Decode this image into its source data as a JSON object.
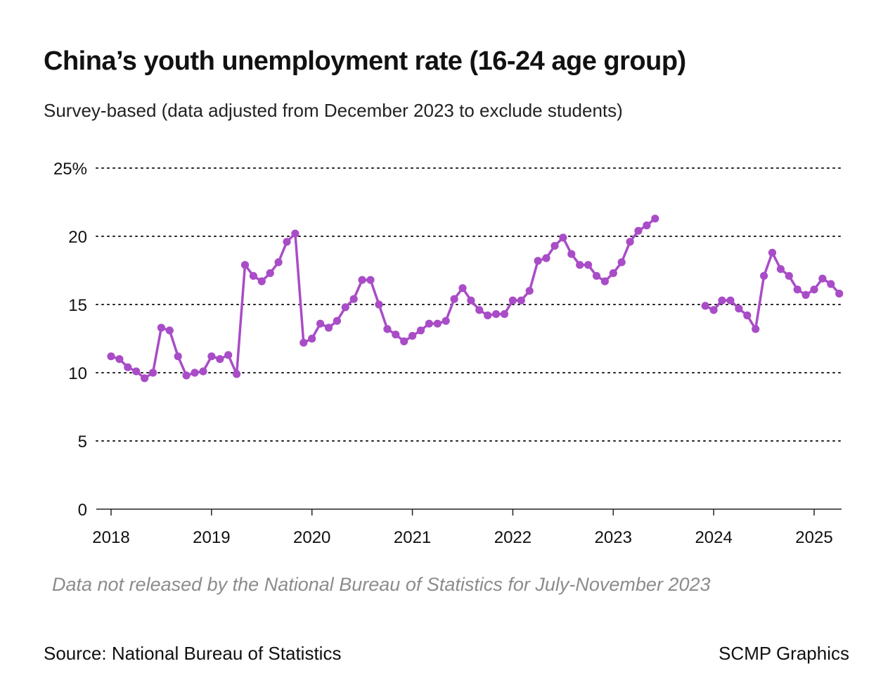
{
  "chart_data": {
    "type": "line",
    "title": "China’s youth unemployment rate (16-24 age group)",
    "subtitle": "Survey-based (data adjusted from December 2023 to exclude students)",
    "xlabel": "",
    "ylabel": "",
    "ylim": [
      0,
      25
    ],
    "y_ticks": [
      {
        "value": 25,
        "label": "25%"
      },
      {
        "value": 20,
        "label": "20"
      },
      {
        "value": 15,
        "label": "15"
      },
      {
        "value": 10,
        "label": "10"
      },
      {
        "value": 5,
        "label": "5"
      },
      {
        "value": 0,
        "label": "0"
      }
    ],
    "x_ticks": [
      {
        "value": 2018,
        "label": "2018"
      },
      {
        "value": 2019,
        "label": "2019"
      },
      {
        "value": 2020,
        "label": "2020"
      },
      {
        "value": 2021,
        "label": "2021"
      },
      {
        "value": 2022,
        "label": "2022"
      },
      {
        "value": 2023,
        "label": "2023"
      },
      {
        "value": 2024,
        "label": "2024"
      },
      {
        "value": 2025,
        "label": "2025"
      }
    ],
    "xlim": [
      2017.99,
      2025.4
    ],
    "grid": true,
    "series": [
      {
        "name": "Youth unemployment rate",
        "color": "#a94cc7",
        "segments": [
          {
            "start": "2018-01",
            "values": [
              11.2,
              11.0,
              10.4,
              10.1,
              9.6,
              10.0,
              13.3,
              13.1,
              11.2,
              9.8,
              10.0,
              10.1,
              11.2,
              11.0,
              11.3,
              9.9,
              17.9,
              17.1,
              16.7,
              17.3,
              18.1,
              19.6,
              20.2,
              12.2,
              12.5,
              13.6,
              13.3,
              13.8,
              14.8,
              15.4,
              16.8,
              16.8,
              15.0,
              13.2,
              12.8,
              12.3,
              12.7,
              13.1,
              13.6,
              13.6,
              13.8,
              15.4,
              16.2,
              15.3,
              14.6,
              14.2,
              14.3,
              14.3,
              15.3,
              15.3,
              16.0,
              18.2,
              18.4,
              19.3,
              19.9,
              18.7,
              17.9,
              17.9,
              17.1,
              16.7,
              17.3,
              18.1,
              19.6,
              20.4,
              20.8,
              21.3
            ]
          },
          {
            "start": "2023-12",
            "values": [
              14.9,
              14.6,
              15.3,
              15.3,
              14.7,
              14.2,
              13.2,
              17.1,
              18.8,
              17.6,
              17.1,
              16.1,
              15.7,
              16.1,
              16.9,
              16.5,
              15.8
            ]
          }
        ]
      }
    ],
    "annotations": [
      "Data not released by the National Bureau of Statistics for July-November 2023"
    ]
  },
  "footer": {
    "source": "Source: National Bureau of Statistics",
    "credit": "SCMP Graphics"
  },
  "colors": {
    "line": "#a94cc7",
    "grid": "#222222",
    "note": "#8c8c8c"
  }
}
